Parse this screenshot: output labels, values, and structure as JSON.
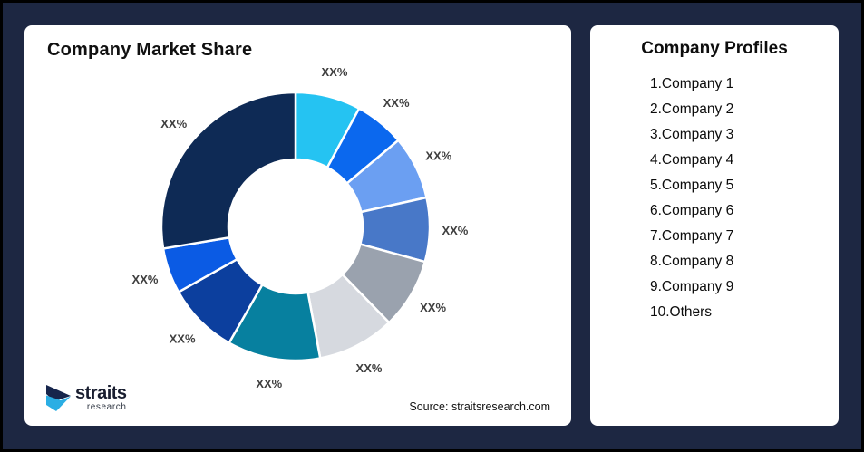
{
  "canvas": {
    "background": "#1D2742",
    "outer_border": "#000000",
    "card_background": "#FFFFFF"
  },
  "market_share_card": {
    "title": "Company Market Share",
    "source_note": "Source: straitsresearch.com",
    "logo": {
      "brand": "straits",
      "brand_sub": "research",
      "mark_navy": "#16254C",
      "mark_cyan": "#2BAEE4"
    }
  },
  "profiles_card": {
    "title": "Company Profiles",
    "items": [
      "1.Company 1",
      "2.Company 2",
      "3.Company 3",
      "4.Company 4",
      "5.Company 5",
      "6.Company 6",
      "7.Company 7",
      "8.Company 8",
      "9.Company 9",
      "10.Others"
    ]
  },
  "chart_data": {
    "type": "pie",
    "subtype": "donut",
    "title": "Company Market Share",
    "start_angle_deg": 0,
    "direction": "clockwise",
    "inner_radius_ratio": 0.5,
    "value_labels_are_placeholders": true,
    "label_color": "#3F3F3F",
    "segment_gap_stroke": "#FFFFFF",
    "segments": [
      {
        "name": "Company 1",
        "label": "XX%",
        "angle_deg": 28.3,
        "est_share_pct": 7.9,
        "color": "#25C3F2"
      },
      {
        "name": "Company 2",
        "label": "XX%",
        "angle_deg": 21.7,
        "est_share_pct": 6.0,
        "color": "#0B68EE"
      },
      {
        "name": "Company 3",
        "label": "XX%",
        "angle_deg": 27.5,
        "est_share_pct": 7.6,
        "color": "#6B9FF2"
      },
      {
        "name": "Company 4",
        "label": "XX%",
        "angle_deg": 27.8,
        "est_share_pct": 7.7,
        "color": "#4878C8"
      },
      {
        "name": "Company 5",
        "label": "XX%",
        "angle_deg": 30.5,
        "est_share_pct": 8.5,
        "color": "#9AA2AE"
      },
      {
        "name": "Company 6",
        "label": "XX%",
        "angle_deg": 33.6,
        "est_share_pct": 9.3,
        "color": "#D6D9DF"
      },
      {
        "name": "Company 7",
        "label": "XX%",
        "angle_deg": 40.3,
        "est_share_pct": 11.2,
        "color": "#07809F"
      },
      {
        "name": "Company 8",
        "label": "XX%",
        "angle_deg": 31.0,
        "est_share_pct": 8.6,
        "color": "#0C3F9E"
      },
      {
        "name": "Company 9",
        "label": "XX%",
        "angle_deg": 19.8,
        "est_share_pct": 5.5,
        "color": "#0B5BE4"
      },
      {
        "name": "Others",
        "label": "XX%",
        "angle_deg": 99.5,
        "est_share_pct": 27.6,
        "color": "#0E2A55"
      }
    ]
  }
}
